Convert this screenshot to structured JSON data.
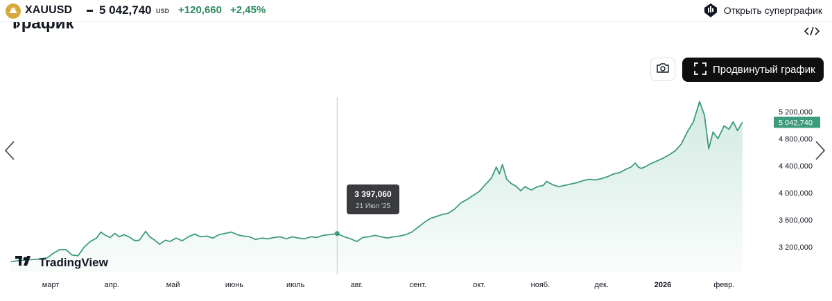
{
  "header": {
    "symbol": "XAUUSD",
    "price": "5 042,740",
    "currency": "USD",
    "change": "+120,660",
    "change_pct": "+2,45%",
    "supergraph_label": "Открыть суперграфик",
    "coin_icon": "gold-bars-icon",
    "supergraph_icon": "supergraph-logo-icon",
    "accent_positive": "#2b8a5e",
    "coin_color": "#d8a83a"
  },
  "section": {
    "title": "График",
    "chevron": "›",
    "embed_icon": "code-embed-icon"
  },
  "toolbar": {
    "camera_icon": "camera-icon",
    "advanced_label": "Продвинутый график",
    "advanced_icon": "fullscreen-corners-icon"
  },
  "tooltip": {
    "value": "3 397,060",
    "date": "21 Июл '25"
  },
  "logo": {
    "text": "TradingView"
  },
  "nav": {
    "prev_icon": "chevron-left-icon",
    "next_icon": "chevron-right-icon"
  },
  "chart_data": {
    "type": "area",
    "line_color": "#3d9b7d",
    "fill_color": "#cfe9df",
    "ylim": [
      2950000,
      5300000
    ],
    "y_ticks": [
      {
        "value": 3200000,
        "label": "3 200,000"
      },
      {
        "value": 3600000,
        "label": "3 600,000"
      },
      {
        "value": 4000000,
        "label": "4 000,000"
      },
      {
        "value": 4400000,
        "label": "4 400,000"
      },
      {
        "value": 4800000,
        "label": "4 800,000"
      },
      {
        "value": 5200000,
        "label": "5 200,000"
      }
    ],
    "last_value": {
      "value": 5042740,
      "label": "5 042,740"
    },
    "x_ticks": [
      {
        "month": 1,
        "label": "март",
        "bold": false
      },
      {
        "month": 2,
        "label": "апр.",
        "bold": false
      },
      {
        "month": 3,
        "label": "май",
        "bold": false
      },
      {
        "month": 4,
        "label": "июнь",
        "bold": false
      },
      {
        "month": 5,
        "label": "июль",
        "bold": false
      },
      {
        "month": 6,
        "label": "авг.",
        "bold": false
      },
      {
        "month": 7,
        "label": "сент.",
        "bold": false
      },
      {
        "month": 8,
        "label": "окт.",
        "bold": false
      },
      {
        "month": 9,
        "label": "нояб.",
        "bold": false
      },
      {
        "month": 10,
        "label": "дек.",
        "bold": false
      },
      {
        "month": 11,
        "label": "2026",
        "bold": true
      },
      {
        "month": 12,
        "label": "февр.",
        "bold": false
      }
    ],
    "crosshair": {
      "month": 5.68,
      "value": 3397060
    },
    "points": [
      [
        0.35,
        2980000
      ],
      [
        0.5,
        3000000
      ],
      [
        0.65,
        3010000
      ],
      [
        0.8,
        3020000
      ],
      [
        0.95,
        3040000
      ],
      [
        1.05,
        3110000
      ],
      [
        1.15,
        3160000
      ],
      [
        1.25,
        3160000
      ],
      [
        1.35,
        3080000
      ],
      [
        1.45,
        3070000
      ],
      [
        1.55,
        3200000
      ],
      [
        1.65,
        3280000
      ],
      [
        1.75,
        3330000
      ],
      [
        1.82,
        3420000
      ],
      [
        1.9,
        3370000
      ],
      [
        1.97,
        3340000
      ],
      [
        2.05,
        3400000
      ],
      [
        2.12,
        3350000
      ],
      [
        2.2,
        3380000
      ],
      [
        2.28,
        3350000
      ],
      [
        2.38,
        3290000
      ],
      [
        2.45,
        3300000
      ],
      [
        2.55,
        3430000
      ],
      [
        2.62,
        3350000
      ],
      [
        2.7,
        3300000
      ],
      [
        2.78,
        3240000
      ],
      [
        2.88,
        3300000
      ],
      [
        2.95,
        3280000
      ],
      [
        3.05,
        3330000
      ],
      [
        3.15,
        3290000
      ],
      [
        3.25,
        3350000
      ],
      [
        3.35,
        3390000
      ],
      [
        3.45,
        3350000
      ],
      [
        3.55,
        3360000
      ],
      [
        3.65,
        3330000
      ],
      [
        3.75,
        3380000
      ],
      [
        3.85,
        3400000
      ],
      [
        3.95,
        3420000
      ],
      [
        4.05,
        3380000
      ],
      [
        4.15,
        3360000
      ],
      [
        4.25,
        3350000
      ],
      [
        4.35,
        3310000
      ],
      [
        4.45,
        3330000
      ],
      [
        4.55,
        3320000
      ],
      [
        4.65,
        3340000
      ],
      [
        4.75,
        3350000
      ],
      [
        4.85,
        3320000
      ],
      [
        4.95,
        3350000
      ],
      [
        5.05,
        3330000
      ],
      [
        5.15,
        3320000
      ],
      [
        5.25,
        3350000
      ],
      [
        5.35,
        3340000
      ],
      [
        5.45,
        3370000
      ],
      [
        5.55,
        3380000
      ],
      [
        5.68,
        3397060
      ],
      [
        5.8,
        3350000
      ],
      [
        5.9,
        3320000
      ],
      [
        6.0,
        3280000
      ],
      [
        6.1,
        3340000
      ],
      [
        6.2,
        3350000
      ],
      [
        6.3,
        3370000
      ],
      [
        6.4,
        3350000
      ],
      [
        6.5,
        3330000
      ],
      [
        6.6,
        3350000
      ],
      [
        6.7,
        3360000
      ],
      [
        6.8,
        3380000
      ],
      [
        6.9,
        3420000
      ],
      [
        7.0,
        3490000
      ],
      [
        7.1,
        3560000
      ],
      [
        7.2,
        3620000
      ],
      [
        7.3,
        3650000
      ],
      [
        7.4,
        3680000
      ],
      [
        7.5,
        3700000
      ],
      [
        7.6,
        3760000
      ],
      [
        7.7,
        3850000
      ],
      [
        7.8,
        3900000
      ],
      [
        7.9,
        3960000
      ],
      [
        8.0,
        4020000
      ],
      [
        8.1,
        4120000
      ],
      [
        8.2,
        4220000
      ],
      [
        8.28,
        4380000
      ],
      [
        8.33,
        4280000
      ],
      [
        8.38,
        4420000
      ],
      [
        8.45,
        4200000
      ],
      [
        8.52,
        4140000
      ],
      [
        8.6,
        4100000
      ],
      [
        8.68,
        4030000
      ],
      [
        8.75,
        4090000
      ],
      [
        8.85,
        4040000
      ],
      [
        8.95,
        4090000
      ],
      [
        9.05,
        4110000
      ],
      [
        9.1,
        4170000
      ],
      [
        9.2,
        4120000
      ],
      [
        9.3,
        4090000
      ],
      [
        9.4,
        4110000
      ],
      [
        9.5,
        4130000
      ],
      [
        9.6,
        4150000
      ],
      [
        9.7,
        4180000
      ],
      [
        9.8,
        4200000
      ],
      [
        9.9,
        4190000
      ],
      [
        10.0,
        4210000
      ],
      [
        10.1,
        4240000
      ],
      [
        10.2,
        4280000
      ],
      [
        10.3,
        4300000
      ],
      [
        10.4,
        4350000
      ],
      [
        10.48,
        4380000
      ],
      [
        10.55,
        4440000
      ],
      [
        10.6,
        4380000
      ],
      [
        10.65,
        4360000
      ],
      [
        10.72,
        4390000
      ],
      [
        10.8,
        4430000
      ],
      [
        10.9,
        4470000
      ],
      [
        11.0,
        4510000
      ],
      [
        11.1,
        4560000
      ],
      [
        11.2,
        4620000
      ],
      [
        11.3,
        4720000
      ],
      [
        11.4,
        4900000
      ],
      [
        11.5,
        5050000
      ],
      [
        11.6,
        5350000
      ],
      [
        11.68,
        5150000
      ],
      [
        11.75,
        4650000
      ],
      [
        11.82,
        4900000
      ],
      [
        11.9,
        4800000
      ],
      [
        12.0,
        4990000
      ],
      [
        12.08,
        4940000
      ],
      [
        12.15,
        5050000
      ],
      [
        12.22,
        4920000
      ],
      [
        12.3,
        5042740
      ]
    ]
  }
}
